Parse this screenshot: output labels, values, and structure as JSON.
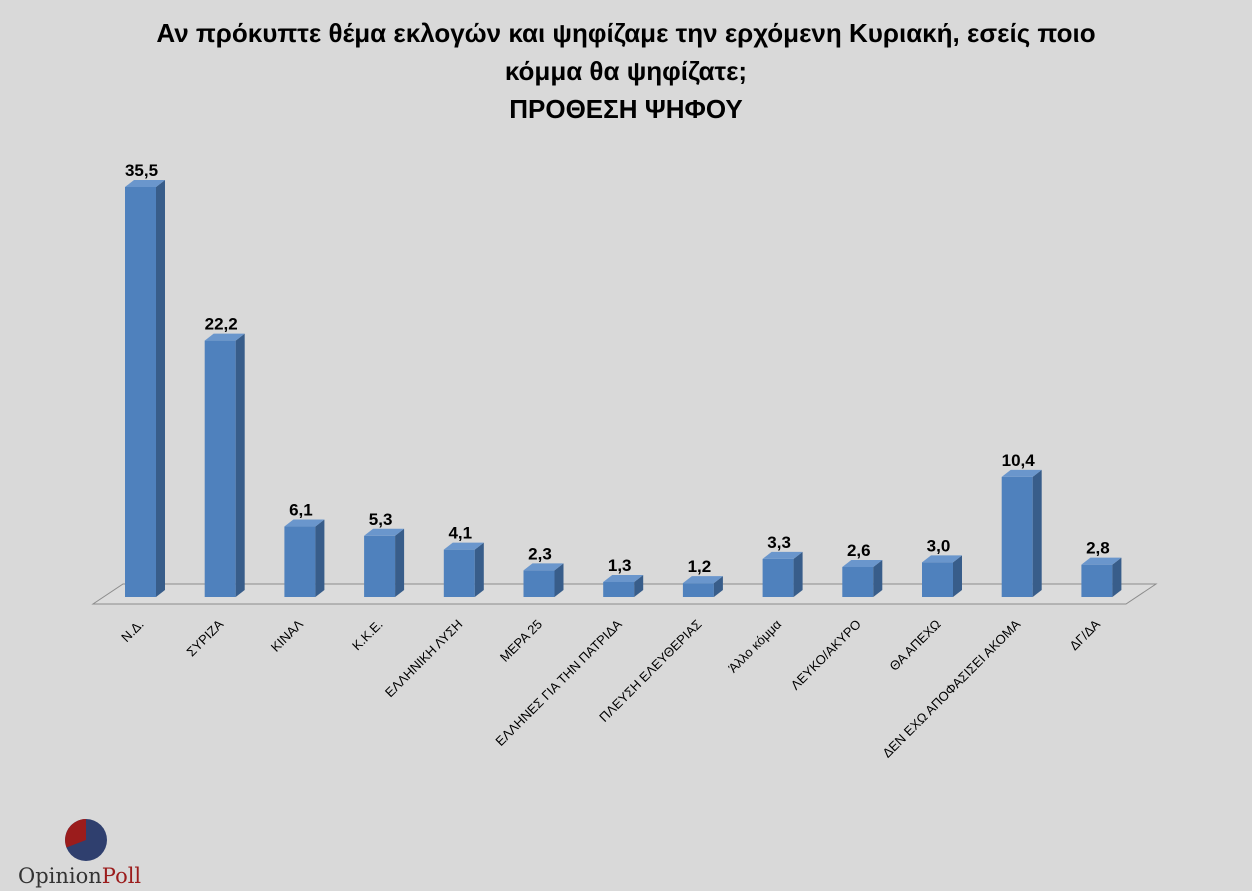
{
  "chart_data": {
    "type": "bar",
    "title_lines": [
      "Αν πρόκυπτε θέμα εκλογών και ψηφίζαμε την ερχόμενη Κυριακή, εσείς ποιο",
      "κόμμα θα ψηφίζατε;",
      "ΠΡΟΘΕΣΗ ΨΗΦΟΥ"
    ],
    "categories": [
      "Ν.Δ.",
      "ΣΥΡΙΖΑ",
      "ΚΙΝΑΛ",
      "Κ.Κ.Ε.",
      "ΕΛΛΗΝΙΚΗ ΛΥΣΗ",
      "ΜΕΡΑ 25",
      "ΕΛΛΗΝΕΣ ΓΙΑ ΤΗΝ ΠΑΤΡΙΔΑ",
      "ΠΛΕΥΣΗ ΕΛΕΥΘΕΡΙΑΣ",
      "Άλλο κόμμα",
      "ΛΕΥΚΟ/ΑΚΥΡΟ",
      "ΘΑ ΑΠΕΧΩ",
      "ΔΕΝ ΕΧΩ ΑΠΟΦΑΣΙΣΕΙ ΑΚΟΜΑ",
      "ΔΓ/ΔΑ"
    ],
    "values": [
      35.5,
      22.2,
      6.1,
      5.3,
      4.1,
      2.3,
      1.3,
      1.2,
      3.3,
      2.6,
      3.0,
      10.4,
      2.8
    ],
    "data_labels": [
      "35,5",
      "22,2",
      "6,1",
      "5,3",
      "4,1",
      "2,3",
      "1,3",
      "1,2",
      "3,3",
      "2,6",
      "3,0",
      "10,4",
      "2,8"
    ],
    "ylim": [
      0,
      36
    ],
    "bar_color": "#4f81bd",
    "bar_side_color": "#385d8a",
    "bar_top_color": "#6a96cc",
    "grid": false,
    "legend": "none"
  },
  "logo": {
    "text_first": "Opinion",
    "text_second": "Poll",
    "accent": "#9b1c1c",
    "dark": "#2f3f6e"
  }
}
